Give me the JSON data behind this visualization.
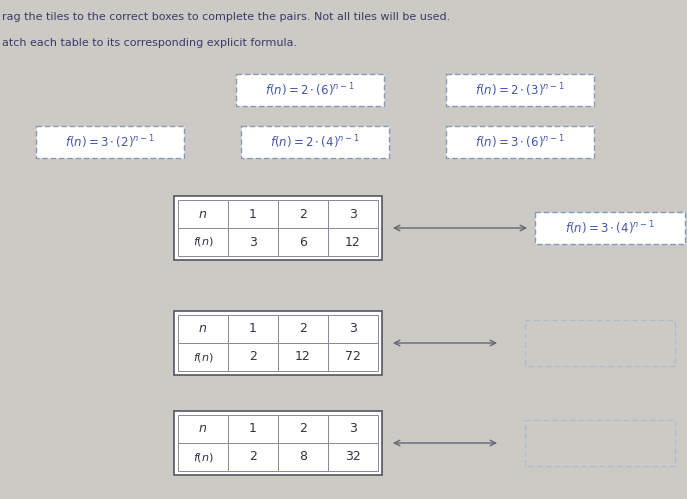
{
  "background_color": "#cccac4",
  "instruction_text": "rag the tiles to the correct boxes to complete the pairs. Not all tiles will be used.",
  "match_text": "atch each table to its corresponding explicit formula.",
  "tile_formulas_row1": [
    "f(n) = 2 \\cdot (6)^{n-1}",
    "f(n) = 2 \\cdot (3)^{n-1}"
  ],
  "tile_formulas_row2": [
    "f(n) = 3 \\cdot (2)^{n-1}",
    "f(n) = 2 \\cdot (4)^{n-1}",
    "f(n) = 3 \\cdot (6)^{n-1}"
  ],
  "answer_formula": "f(n) = 3 \\cdot (4)^{n-1}",
  "tables": [
    {
      "n_vals": [
        1,
        2,
        3
      ],
      "fn_vals": [
        3,
        6,
        12
      ]
    },
    {
      "n_vals": [
        1,
        2,
        3
      ],
      "fn_vals": [
        2,
        12,
        72
      ]
    },
    {
      "n_vals": [
        1,
        2,
        3
      ],
      "fn_vals": [
        2,
        8,
        32
      ]
    }
  ],
  "tile_border_color": "#8899bb",
  "tile_text_color": "#4455aa",
  "table_outer_color": "#555566",
  "table_inner_color": "#888899",
  "table_text_color": "#333344",
  "empty_box_border_color": "#aabbcc",
  "arrow_color": "#666677"
}
